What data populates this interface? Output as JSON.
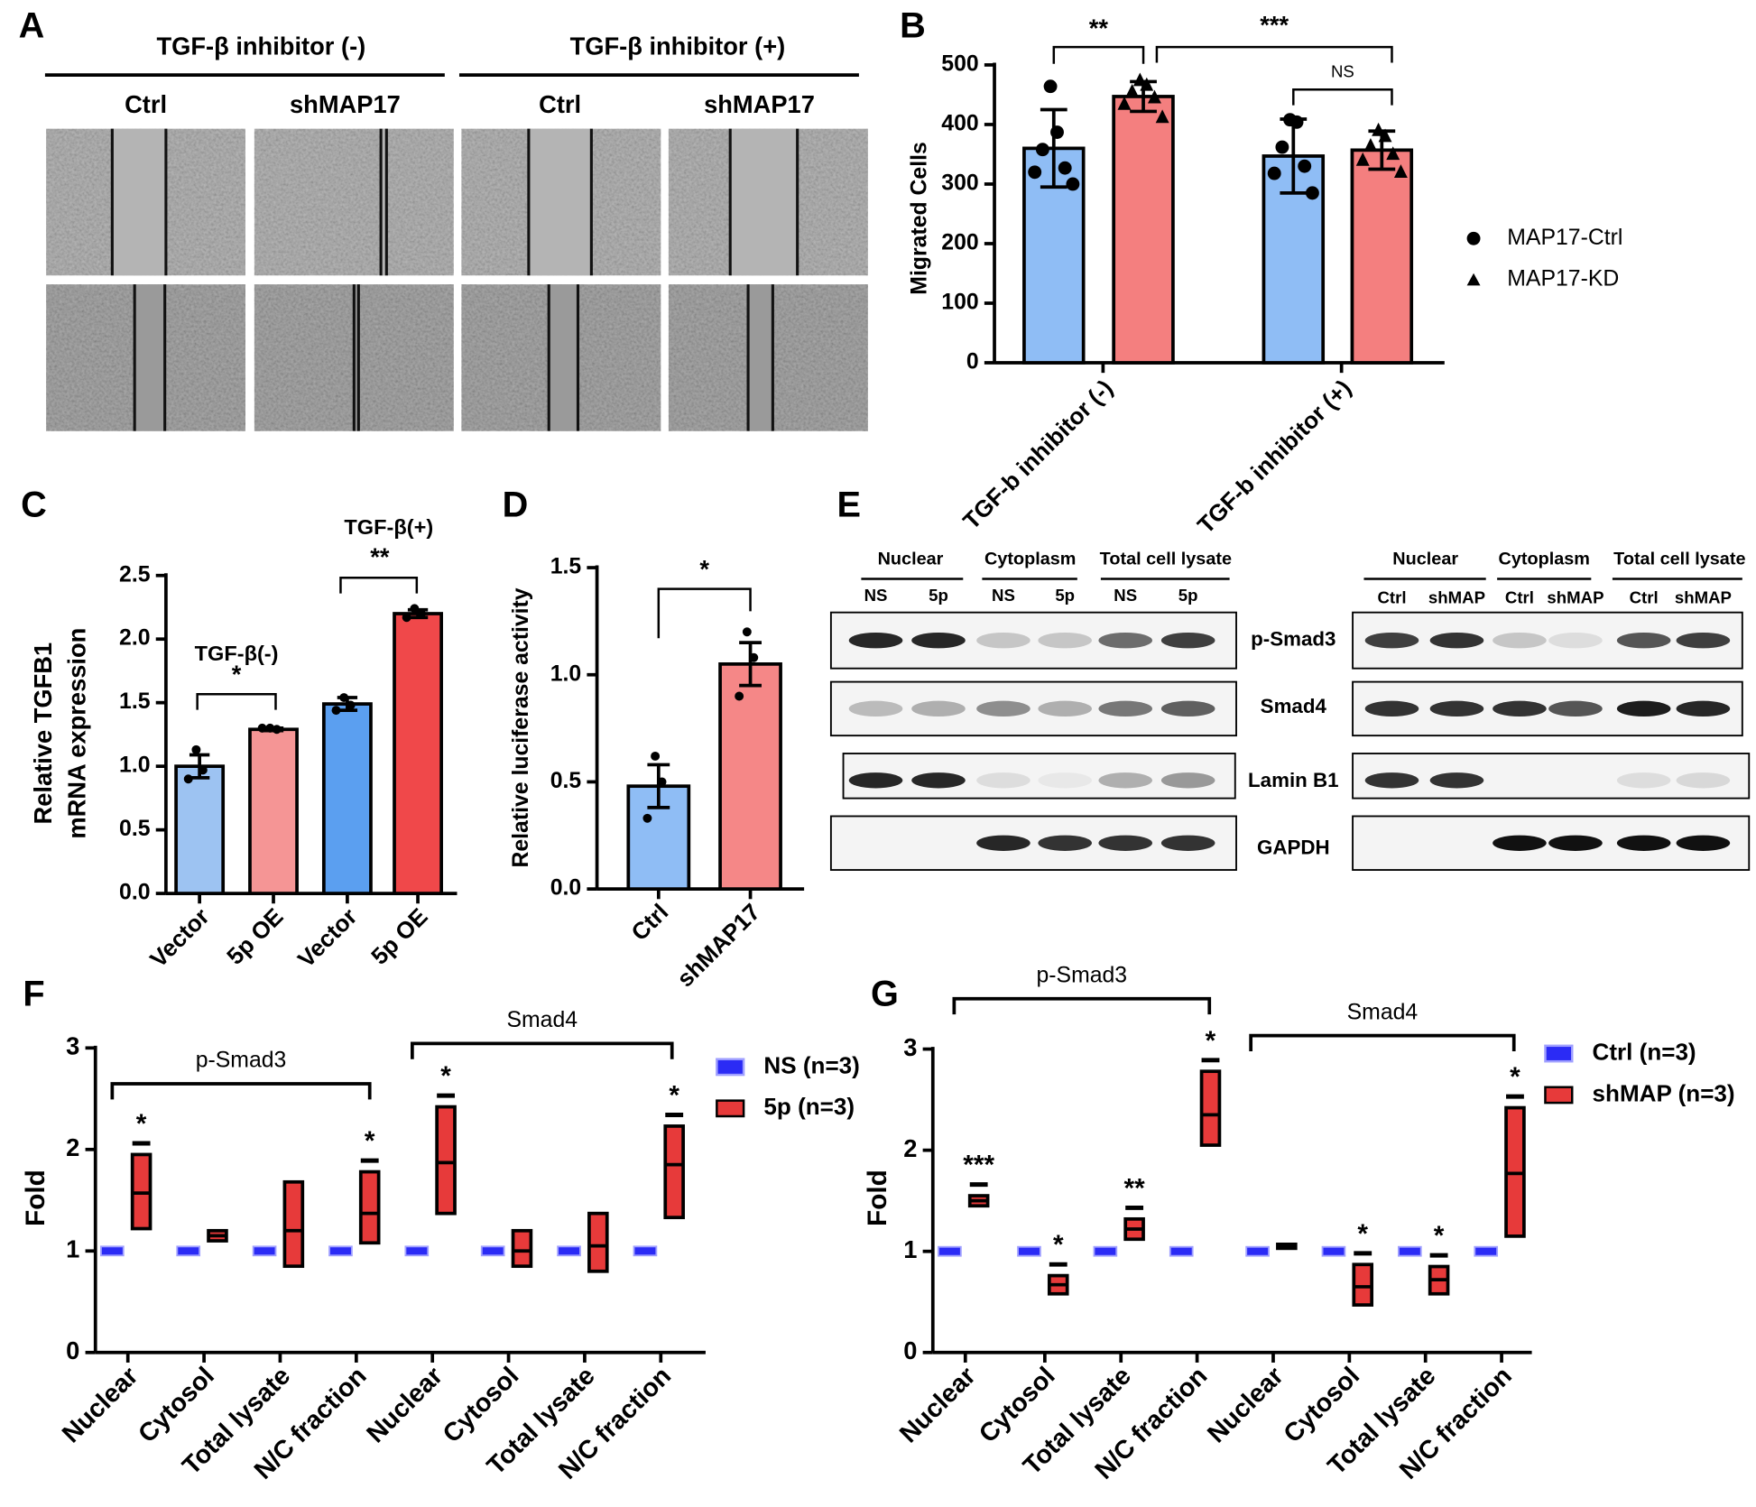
{
  "panel_a": {
    "label": "A",
    "conditions": [
      {
        "title": "TGF-β inhibitor (-)",
        "columns": [
          "Ctrl",
          "shMAP17"
        ]
      },
      {
        "title": "TGF-β inhibitor (+)",
        "columns": [
          "Ctrl",
          "shMAP17"
        ]
      }
    ]
  },
  "panel_e": {
    "label": "E",
    "left": {
      "groups": [
        "Nuclear",
        "Cytoplasm",
        "Total cell lysate"
      ],
      "lanes": [
        "NS",
        "5p",
        "NS",
        "5p",
        "NS",
        "5p"
      ]
    },
    "right": {
      "groups": [
        "Nuclear",
        "Cytoplasm",
        "Total cell lysate"
      ],
      "lanes": [
        "Ctrl",
        "shMAP",
        "Ctrl",
        "shMAP",
        "Ctrl",
        "shMAP"
      ]
    },
    "proteins": [
      "p-Smad3",
      "Smad4",
      "Lamin B1",
      "GAPDH"
    ]
  },
  "chart_data": [
    {
      "type": "bar",
      "panel": "B",
      "y_label": "Migrated Cells",
      "categories": [
        "TGF-b inhibitor (-)",
        "TGF-b inhibitor (+)"
      ],
      "series": [
        {
          "name": "MAP17-Ctrl",
          "color": "#8fbdf5",
          "marker": "circle",
          "values": [
            360,
            347
          ],
          "errors": [
            65,
            62
          ],
          "points": [
            [
              464,
              387,
              358,
              327,
              320,
              300
            ],
            [
              408,
              404,
              362,
              330,
              318,
              285
            ]
          ]
        },
        {
          "name": "MAP17-KD",
          "color": "#f47f7f",
          "marker": "triangle",
          "values": [
            447,
            357
          ],
          "errors": [
            25,
            32
          ],
          "points": [
            [
              474,
              466,
              455,
              445,
              434,
              412
            ],
            [
              390,
              380,
              364,
              350,
              340,
              320
            ]
          ]
        }
      ],
      "ylim": [
        0,
        500
      ],
      "yticks": [
        0,
        100,
        200,
        300,
        400,
        500
      ],
      "comparisons": [
        {
          "label": "**"
        },
        {
          "label": "***"
        },
        {
          "label": "NS"
        }
      ]
    },
    {
      "type": "bar",
      "panel": "C",
      "y_label": [
        "Relative TGFB1",
        "mRNA expression"
      ],
      "categories": [
        "Vector",
        "5p OE",
        "Vector",
        "5p OE"
      ],
      "values": [
        1.0,
        1.29,
        1.49,
        2.2
      ],
      "errors": [
        0.09,
        0.01,
        0.05,
        0.03
      ],
      "colors": [
        "#9dc3f2",
        "#f59595",
        "#5b9ff0",
        "#f0484a"
      ],
      "points": [
        [
          1.13,
          0.97,
          0.9
        ],
        [
          1.3,
          1.29,
          1.3
        ],
        [
          1.54,
          1.48,
          1.44
        ],
        [
          2.24,
          2.2,
          2.17
        ]
      ],
      "ylim": [
        0,
        2.5
      ],
      "yticks": [
        {
          "value": 0,
          "label": "0.0"
        },
        0.5,
        {
          "value": 1,
          "label": "1.0"
        },
        1.5,
        {
          "value": 2,
          "label": "2.0"
        },
        2.5
      ],
      "comparisons": [
        {
          "group": "TGF-β(-)",
          "label": "*"
        },
        {
          "group": "TGF-β(+)",
          "label": "**"
        }
      ]
    },
    {
      "type": "bar",
      "panel": "D",
      "y_label": "Relative luciferase activity",
      "categories": [
        "Ctrl",
        "shMAP17"
      ],
      "values": [
        0.48,
        1.05
      ],
      "errors": [
        0.1,
        0.1
      ],
      "colors": [
        "#8fbdf5",
        "#f58787"
      ],
      "points": [
        [
          0.62,
          0.5,
          0.33
        ],
        [
          1.2,
          1.08,
          0.9
        ]
      ],
      "ylim": [
        0,
        1.5
      ],
      "yticks": [
        {
          "value": 0,
          "label": "0.0"
        },
        0.5,
        {
          "value": 1,
          "label": "1.0"
        },
        1.5
      ],
      "comparisons": [
        {
          "label": "*"
        }
      ]
    },
    {
      "type": "floating_bar",
      "panel": "F",
      "y_label": "Fold",
      "categories": [
        "Nuclear",
        "Cytosol",
        "Total lysate",
        "N/C fraction",
        "Nuclear",
        "Cytosol",
        "Total lysate",
        "N/C fraction"
      ],
      "groups": [
        "p-Smad3",
        "Smad4"
      ],
      "series": [
        {
          "name": "NS (n=3)",
          "color": "#2b2bf5",
          "values": [
            1,
            1,
            1,
            1,
            1,
            1,
            1,
            1
          ]
        },
        {
          "name": "5p (n=3)",
          "color": "#e73a3a",
          "values": [
            1.57,
            1.15,
            1.2,
            1.37,
            1.87,
            1.0,
            1.05,
            1.85
          ],
          "low": [
            1.22,
            1.1,
            0.85,
            1.08,
            1.37,
            0.85,
            0.8,
            1.33
          ],
          "high": [
            1.95,
            1.2,
            1.68,
            1.78,
            2.42,
            1.2,
            1.37,
            2.23
          ],
          "significance": [
            "*",
            null,
            null,
            "*",
            "*",
            null,
            null,
            "*"
          ]
        }
      ],
      "ylim": [
        0,
        3
      ],
      "yticks": [
        0,
        1,
        2,
        3
      ]
    },
    {
      "type": "floating_bar",
      "panel": "G",
      "y_label": "Fold",
      "categories": [
        "Nuclear",
        "Cytosol",
        "Total lysate",
        "N/C fraction",
        "Nuclear",
        "Cytosol",
        "Total lysate",
        "N/C fraction"
      ],
      "groups": [
        "p-Smad3",
        "Smad4"
      ],
      "series": [
        {
          "name": "Ctrl (n=3)",
          "color": "#2b2bf5",
          "values": [
            1,
            1,
            1,
            1,
            1,
            1,
            1,
            1
          ]
        },
        {
          "name": "shMAP (n=3)",
          "color": "#e73a3a",
          "values": [
            1.5,
            0.67,
            1.22,
            2.35,
            1.05,
            0.65,
            0.72,
            1.77
          ],
          "low": [
            1.45,
            0.58,
            1.12,
            2.05,
            1.03,
            0.47,
            0.58,
            1.15
          ],
          "high": [
            1.55,
            0.76,
            1.32,
            2.78,
            1.07,
            0.87,
            0.85,
            2.42
          ],
          "significance": [
            "***",
            "*",
            "**",
            "*",
            null,
            "*",
            "*",
            "*"
          ]
        }
      ],
      "ylim": [
        0,
        3
      ],
      "yticks": [
        0,
        1,
        2,
        3
      ]
    }
  ]
}
